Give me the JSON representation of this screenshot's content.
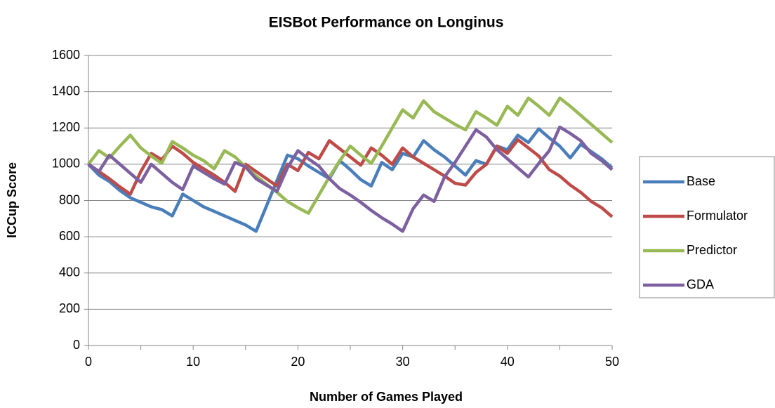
{
  "chart_data": {
    "type": "line",
    "title": "EISBot Performance on Longinus",
    "x_label": "Number of Games Played",
    "y_label": "ICCup Score",
    "x": [
      0,
      1,
      2,
      3,
      4,
      5,
      6,
      7,
      8,
      9,
      10,
      11,
      12,
      13,
      14,
      15,
      16,
      17,
      18,
      19,
      20,
      21,
      22,
      23,
      24,
      25,
      26,
      27,
      28,
      29,
      30,
      31,
      32,
      33,
      34,
      35,
      36,
      37,
      38,
      39,
      40,
      41,
      42,
      43,
      44,
      45,
      46,
      47,
      48,
      49,
      50
    ],
    "xlim": [
      0,
      50
    ],
    "xticks": [
      0,
      10,
      20,
      30,
      40,
      50
    ],
    "xticks_minor": [
      5,
      15,
      25,
      35,
      45
    ],
    "ylim": [
      0,
      1600
    ],
    "yticks": [
      0,
      200,
      400,
      600,
      800,
      1000,
      1200,
      1400,
      1600
    ],
    "grid": true,
    "legend": "right",
    "series": [
      {
        "name": "Base",
        "color": "#4a7ebb",
        "values": [
          1000,
          940,
          905,
          855,
          815,
          790,
          765,
          750,
          715,
          835,
          800,
          765,
          740,
          715,
          690,
          665,
          630,
          770,
          910,
          1050,
          1030,
          990,
          955,
          920,
          1020,
          970,
          915,
          880,
          1010,
          970,
          1060,
          1040,
          1130,
          1080,
          1040,
          990,
          940,
          1020,
          1000,
          1100,
          1080,
          1160,
          1120,
          1195,
          1145,
          1100,
          1035,
          1110,
          1070,
          1030,
          980
        ]
      },
      {
        "name": "Formulator",
        "color": "#be4b48",
        "values": [
          1000,
          960,
          920,
          875,
          835,
          960,
          1060,
          1025,
          1100,
          1060,
          1010,
          975,
          940,
          900,
          850,
          1000,
          960,
          920,
          880,
          1000,
          965,
          1065,
          1030,
          1130,
          1085,
          1040,
          995,
          1090,
          1050,
          1000,
          1090,
          1040,
          1005,
          970,
          935,
          895,
          885,
          955,
          1000,
          1100,
          1060,
          1135,
          1090,
          1045,
          970,
          935,
          885,
          845,
          795,
          760,
          710
        ]
      },
      {
        "name": "Predictor",
        "color": "#98b954",
        "values": [
          1000,
          1075,
          1035,
          1100,
          1160,
          1090,
          1045,
          1005,
          1125,
          1090,
          1050,
          1020,
          975,
          1075,
          1040,
          985,
          935,
          890,
          845,
          795,
          760,
          730,
          830,
          930,
          1020,
          1100,
          1050,
          1005,
          1100,
          1200,
          1300,
          1255,
          1350,
          1290,
          1255,
          1220,
          1190,
          1290,
          1255,
          1215,
          1320,
          1270,
          1365,
          1320,
          1270,
          1365,
          1320,
          1270,
          1220,
          1170,
          1120
        ]
      },
      {
        "name": "GDA",
        "color": "#7d60a0",
        "values": [
          1000,
          960,
          1050,
          1000,
          950,
          900,
          1000,
          950,
          900,
          860,
          990,
          955,
          920,
          890,
          1010,
          985,
          920,
          885,
          850,
          980,
          1075,
          1030,
          990,
          920,
          865,
          830,
          790,
          745,
          705,
          670,
          630,
          755,
          830,
          795,
          930,
          1010,
          1100,
          1190,
          1150,
          1080,
          1030,
          980,
          930,
          1005,
          1075,
          1205,
          1170,
          1130,
          1060,
          1020,
          970
        ]
      }
    ]
  }
}
